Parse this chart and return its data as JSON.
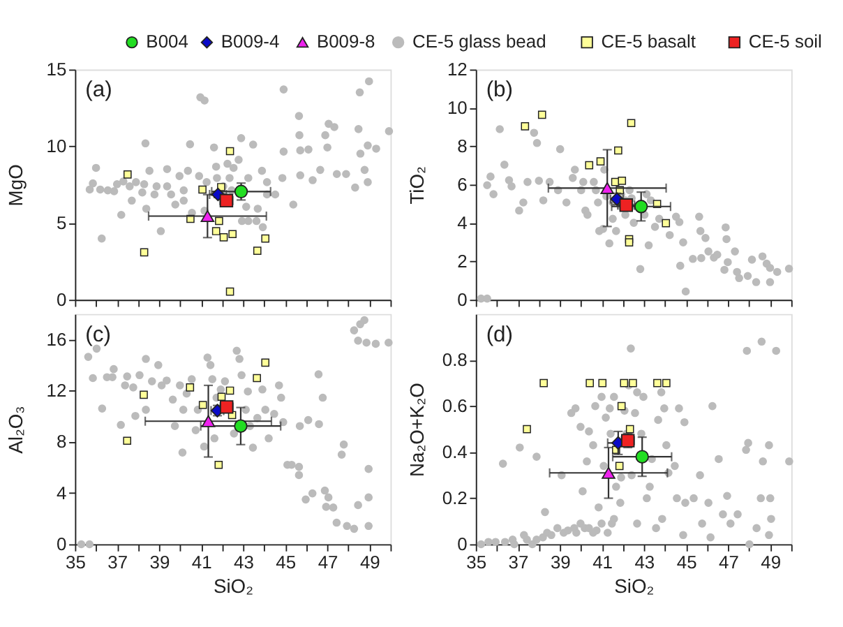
{
  "chart_data": [
    {
      "type": "scatter",
      "ylabel": "MgO",
      "xlim": [
        35,
        50
      ],
      "ylim": [
        0,
        15
      ],
      "xticks": [
        35,
        {
          "value": 36,
          "label": null
        },
        37,
        {
          "value": 38,
          "label": null
        },
        39,
        {
          "value": 40,
          "label": null
        },
        41,
        {
          "value": 42,
          "label": null
        },
        43,
        {
          "value": 44,
          "label": null
        },
        45,
        {
          "value": 46,
          "label": null
        },
        47,
        {
          "value": 48,
          "label": null
        },
        49,
        {
          "value": 50,
          "label": null
        }
      ],
      "yticks": [
        0,
        5,
        10,
        15
      ],
      "tick_labels": "y",
      "grid": false,
      "legend": "top",
      "annotations": [
        "(a)"
      ],
      "series": [
        {
          "name": "B004",
          "color": "#22dd22",
          "marker": "circle",
          "x": [
            42.9
          ],
          "values": [
            7.05
          ],
          "errors": [
            0.55
          ],
          "xerrors": [
            1.4
          ]
        },
        {
          "name": "B009-4",
          "color": "#0a0ac8",
          "marker": "diamond",
          "x": [
            41.8
          ],
          "values": [
            6.86
          ],
          "errors": [
            0.2
          ],
          "xerrors": [
            0.4
          ]
        },
        {
          "name": "B009-8",
          "color": "#ee22ee",
          "marker": "triangle",
          "x": [
            41.3
          ],
          "values": [
            5.45
          ],
          "errors": [
            1.4
          ],
          "xerrors": [
            2.8
          ]
        },
        {
          "name": "CE-5 glass bead",
          "color": "#bbbbbb",
          "marker": "circle",
          "x": [
            35.7,
            35.85,
            36.0,
            36.27,
            36.2,
            36.56,
            36.86,
            37.2,
            37.3,
            37.9,
            37.7,
            38.35,
            38.54,
            38.2,
            38.39,
            38.88,
            39.08,
            39.38,
            39.57,
            39.97,
            40.17,
            40.37,
            40.47,
            40.56,
            40.9,
            40.96,
            41.16,
            41.26,
            41.61,
            41.71,
            42.05,
            42.25,
            42.54,
            42.78,
            42.9,
            43.14,
            43.24,
            43.47,
            43.63,
            43.89,
            43.93,
            44.13,
            44.52,
            44.86,
            44.92,
            44.92,
            45.38,
            45.65,
            45.67,
            45.71,
            45.71,
            46.1,
            46.3,
            46.66,
            46.9,
            47.06,
            47.0,
            47.33,
            47.45,
            47.89,
            48.32,
            48.48,
            48.54,
            48.57,
            48.77,
            48.92,
            48.98,
            48.92,
            49.32,
            49.93,
            41.75,
            42.05,
            42.45,
            40.17,
            39.38,
            38.78,
            39.77,
            41.16,
            42.94,
            43.24,
            43.69,
            44.13,
            38.29,
            37.6,
            37.0,
            42.35
          ],
          "values": [
            7.18,
            7.58,
            8.59,
            3.99,
            7.18,
            7.13,
            7.07,
            5.53,
            7.71,
            7.66,
            6.46,
            10.19,
            8.4,
            6.99,
            5.93,
            7.39,
            4.47,
            8.51,
            6.86,
            8.06,
            6.46,
            8.4,
            10.13,
            5.66,
            8.06,
            13.19,
            12.98,
            7.66,
            9.92,
            8.67,
            6.73,
            8.86,
            8.59,
            9.12,
            10.53,
            6.06,
            7.93,
            10.11,
            5.13,
            8.4,
            4.73,
            7.66,
            6.86,
            7.93,
            9.65,
            13.7,
            6.2,
            11.97,
            10.72,
            9.73,
            8.11,
            9.79,
            7.79,
            8.46,
            10.72,
            11.46,
            9.92,
            11.25,
            8.19,
            8.19,
            7.31,
            11.12,
            13.51,
            9.52,
            8.46,
            7.66,
            14.23,
            10.05,
            9.84,
            10.98,
            7.93,
            7.39,
            7.13,
            7.13,
            7.39,
            6.86,
            6.2,
            5.8,
            5.13,
            5.13,
            5.93,
            6.86,
            7.53,
            7.39,
            7.53,
            7.93
          ]
        },
        {
          "name": "CE-5 basalt",
          "color": "#ffff99",
          "marker": "square",
          "x": [
            37.5,
            41.06,
            41.95,
            42.37,
            40.49,
            41.85,
            41.71,
            42.07,
            42.49,
            44.05,
            43.67,
            38.29,
            42.37
          ],
          "values": [
            8.16,
            7.18,
            7.34,
            9.68,
            5.27,
            5.13,
            4.47,
            4.07,
            4.28,
            3.99,
            3.19,
            3.09,
            0.53
          ]
        },
        {
          "name": "CE-5 soil",
          "color": "#ee2222",
          "marker": "square",
          "x": [
            42.2
          ],
          "values": [
            6.46
          ],
          "errors": [
            0.3
          ],
          "xerrors": [
            0.3
          ]
        }
      ]
    },
    {
      "type": "scatter",
      "ylabel": "TiO₂",
      "xlim": [
        35,
        50
      ],
      "ylim": [
        0,
        12
      ],
      "xticks": [
        35,
        {
          "value": 36,
          "label": null
        },
        37,
        {
          "value": 38,
          "label": null
        },
        39,
        {
          "value": 40,
          "label": null
        },
        41,
        {
          "value": 42,
          "label": null
        },
        43,
        {
          "value": 44,
          "label": null
        },
        45,
        {
          "value": 46,
          "label": null
        },
        47,
        {
          "value": 48,
          "label": null
        },
        49,
        {
          "value": 50,
          "label": null
        }
      ],
      "yticks": [
        0,
        2,
        4,
        6,
        8,
        10,
        12
      ],
      "tick_labels": "y",
      "grid": false,
      "annotations": [
        "(b)"
      ],
      "series": [
        {
          "color": "#22dd22",
          "marker": "circle",
          "x": [
            42.86
          ],
          "values": [
            4.86
          ],
          "errors": [
            0.75
          ],
          "xerrors": [
            1.4
          ]
        },
        {
          "color": "#0a0ac8",
          "marker": "diamond",
          "x": [
            41.71
          ],
          "values": [
            5.25
          ],
          "errors": [
            0.3
          ],
          "xerrors": [
            0.3
          ]
        },
        {
          "color": "#ee22ee",
          "marker": "triangle",
          "x": [
            41.25
          ],
          "values": [
            5.82
          ],
          "errors": [
            2.0
          ],
          "xerrors": [
            2.8
          ]
        },
        {
          "color": "#bbbbbb",
          "marker": "circle",
          "x": [
            35.25,
            35.54,
            35.7,
            35.54,
            35.84,
            36.14,
            36.36,
            36.58,
            36.7,
            37.06,
            37.26,
            37.46,
            37.77,
            37.91,
            38.0,
            38.21,
            38.51,
            39.01,
            38.91,
            39.31,
            39.61,
            39.71,
            40.01,
            40.21,
            40.31,
            40.61,
            40.81,
            40.87,
            41.05,
            41.11,
            41.35,
            41.51,
            41.67,
            41.91,
            42.11,
            42.31,
            42.41,
            42.51,
            42.82,
            43.02,
            43.22,
            43.32,
            43.52,
            43.72,
            44.22,
            44.52,
            44.68,
            44.72,
            44.86,
            44.98,
            45.32,
            45.62,
            45.68,
            45.72,
            45.92,
            46.06,
            46.32,
            46.48,
            46.82,
            46.88,
            46.92,
            46.98,
            47.32,
            47.42,
            47.52,
            47.93,
            48.13,
            48.33,
            48.63,
            48.83,
            48.99,
            48.99,
            49.33,
            49.89,
            41.51,
            41.21,
            40.71,
            40.11,
            41.91,
            42.61,
            43.12,
            42.11
          ],
          "values": [
            0.06,
            0.06,
            6.42,
            5.97,
            5.5,
            8.89,
            7.04,
            6.23,
            5.91,
            4.65,
            5.07,
            6.14,
            8.7,
            8.17,
            6.2,
            5.18,
            6.14,
            7.85,
            5.71,
            5.07,
            6.35,
            6.78,
            5.71,
            4.65,
            4.43,
            6.14,
            5.07,
            3.58,
            3.69,
            6.78,
            2.94,
            4.22,
            3.58,
            5.5,
            4.43,
            5.71,
            5.29,
            4.01,
            1.6,
            4.43,
            2.84,
            5.18,
            3.8,
            4.22,
            3.37,
            4.33,
            4.05,
            1.77,
            2.99,
            0.43,
            2.13,
            4.33,
            3.58,
            2.17,
            3.22,
            2.52,
            2.2,
            2.35,
            1.56,
            3.77,
            3.16,
            1.96,
            2.52,
            1.45,
            1.13,
            1.24,
            2.09,
            0.92,
            2.26,
            1.88,
            1.66,
            0.92,
            1.45,
            1.62,
            5.07,
            5.39,
            5.71,
            6.14,
            4.86,
            4.86,
            5.5,
            5.18
          ]
        },
        {
          "color": "#ffff99",
          "marker": "square",
          "x": [
            37.34,
            38.15,
            40.39,
            40.93,
            41.77,
            42.39,
            41.63,
            41.95,
            41.85,
            43.62,
            44.04,
            42.29,
            42.29
          ],
          "values": [
            9.04,
            9.64,
            7.01,
            7.21,
            7.78,
            9.21,
            6.14,
            6.2,
            5.71,
            4.99,
            3.99,
            3.16,
            2.99
          ]
        },
        {
          "color": "#ee2222",
          "marker": "square",
          "x": [
            42.15
          ],
          "values": [
            4.93
          ],
          "errors": [
            0.2
          ],
          "xerrors": [
            0.4
          ]
        }
      ]
    },
    {
      "type": "scatter",
      "xlabel": "SiO₂",
      "ylabel": "Al₂O₃",
      "xlim": [
        35,
        50
      ],
      "ylim": [
        0,
        18
      ],
      "xticks": [
        35,
        {
          "value": 36,
          "label": null
        },
        37,
        {
          "value": 38,
          "label": null
        },
        39,
        {
          "value": 40,
          "label": null
        },
        41,
        {
          "value": 42,
          "label": null
        },
        43,
        {
          "value": 44,
          "label": null
        },
        45,
        {
          "value": 46,
          "label": null
        },
        47,
        {
          "value": 48,
          "label": null
        },
        49,
        {
          "value": 50,
          "label": null
        }
      ],
      "yticks": [
        0,
        4,
        8,
        12,
        16
      ],
      "grid": false,
      "annotations": [
        "(c)"
      ],
      "series": [
        {
          "color": "#22dd22",
          "marker": "circle",
          "x": [
            42.88
          ],
          "values": [
            9.24
          ],
          "errors": [
            1.45
          ],
          "xerrors": [
            1.9
          ]
        },
        {
          "color": "#0a0ac8",
          "marker": "diamond",
          "x": [
            41.77
          ],
          "values": [
            10.45
          ],
          "errors": [
            0.4
          ],
          "xerrors": [
            0.3
          ]
        },
        {
          "color": "#ee22ee",
          "marker": "triangle",
          "x": [
            41.34
          ],
          "values": [
            9.62
          ],
          "errors": [
            2.8
          ],
          "xerrors": [
            3.0
          ]
        },
        {
          "color": "#bbbbbb",
          "marker": "circle",
          "x": [
            35.3,
            35.69,
            35.63,
            36.03,
            35.85,
            36.29,
            36.52,
            36.78,
            36.84,
            37.18,
            37.38,
            37.48,
            37.77,
            37.87,
            38.07,
            38.37,
            38.37,
            38.66,
            38.96,
            39.12,
            39.36,
            39.65,
            39.75,
            39.99,
            40.11,
            40.15,
            40.31,
            40.55,
            40.74,
            40.84,
            41.14,
            41.3,
            41.44,
            41.53,
            41.63,
            41.73,
            41.93,
            42.13,
            42.33,
            42.56,
            42.69,
            42.82,
            42.92,
            43.12,
            43.22,
            43.32,
            43.46,
            43.67,
            43.91,
            44.05,
            44.21,
            44.47,
            44.7,
            44.8,
            44.9,
            45.1,
            45.3,
            45.65,
            45.65,
            45.69,
            45.97,
            46.09,
            46.29,
            46.6,
            46.58,
            46.78,
            46.88,
            46.94,
            47.05,
            47.28,
            47.44,
            47.68,
            47.78,
            47.93,
            48.27,
            48.46,
            48.27,
            48.56,
            48.76,
            48.46,
            48.86,
            49.3,
            48.96,
            48.96,
            48.96,
            49.91
          ],
          "values": [
            0,
            0,
            14.65,
            15.29,
            12.99,
            10.61,
            13.06,
            13.06,
            13.69,
            9.33,
            12.42,
            13.12,
            12.26,
            10.03,
            13.22,
            14.49,
            10.51,
            12.74,
            14.01,
            12.42,
            12.8,
            11.31,
            9.24,
            12.42,
            7.17,
            10.51,
            11.78,
            12.9,
            8.92,
            10.51,
            7.64,
            14.59,
            14.01,
            12.9,
            8.28,
            11.46,
            12.1,
            12.74,
            null,
            8.66,
            15.13,
            14.49,
            13.22,
            10.51,
            11.94,
            9.24,
            7.55,
            9.87,
            12.1,
            10.51,
            8.28,
            10.19,
            12.42,
            11.46,
            9.55,
            6.21,
            6.21,
            6.05,
            5.41,
            9.24,
            3.5,
            9.71,
            3.98,
            9.39,
            13.28,
            11.46,
            4.2,
            2.93,
            3.66,
            2.87,
            1.69,
            7.01,
            7.8,
            1.43,
            1.21,
            3.06,
            16.72,
            17.2,
            17.52,
            15.92,
            15.76,
            15.67,
            3.66,
            1.43,
            5.89,
            15.76
          ]
        },
        {
          "color": "#ffff99",
          "marker": "square",
          "x": [
            38.27,
            40.47,
            41.08,
            41.97,
            42.37,
            44.05,
            43.65,
            42.47,
            37.48,
            41.83
          ],
          "values": [
            11.69,
            12.26,
            10.89,
            11.53,
            12.01,
            14.2,
            12.99,
            10.1,
            8.09,
            6.21
          ]
        },
        {
          "color": "#ee2222",
          "marker": "square",
          "x": [
            42.21
          ],
          "values": [
            10.73
          ],
          "errors": [
            0.4
          ],
          "xerrors": [
            0.3
          ]
        }
      ]
    },
    {
      "type": "scatter",
      "xlabel": "SiO₂",
      "ylabel": "Na₂O+K₂O",
      "xlim": [
        35,
        50
      ],
      "ylim": [
        0,
        1
      ],
      "xticks": [
        35,
        {
          "value": 36,
          "label": null
        },
        37,
        {
          "value": 38,
          "label": null
        },
        39,
        {
          "value": 40,
          "label": null
        },
        41,
        {
          "value": 42,
          "label": null
        },
        43,
        {
          "value": 44,
          "label": null
        },
        45,
        {
          "value": 46,
          "label": null
        },
        47,
        {
          "value": 48,
          "label": null
        },
        49,
        {
          "value": 50,
          "label": null
        }
      ],
      "yticks": [
        0,
        0.2,
        0.4,
        0.6,
        0.8
      ],
      "grid": false,
      "annotations": [
        "(d)"
      ],
      "series": [
        {
          "color": "#22dd22",
          "marker": "circle",
          "x": [
            42.91
          ],
          "values": [
            0.38
          ],
          "errors": [
            0.085
          ],
          "xerrors": [
            1.4
          ]
        },
        {
          "color": "#0a0ac8",
          "marker": "diamond",
          "x": [
            41.77
          ],
          "values": [
            0.44
          ],
          "errors": [
            0.05
          ],
          "xerrors": [
            0.5
          ]
        },
        {
          "color": "#ee22ee",
          "marker": "triangle",
          "x": [
            41.31
          ],
          "values": [
            0.31
          ],
          "errors": [
            0.11
          ],
          "xerrors": [
            2.8
          ]
        },
        {
          "color": "#bbbbbb",
          "marker": "circle",
          "x": [
            35.25,
            35.6,
            35.94,
            36.39,
            36.75,
            36.83,
            37.29,
            37.43,
            37.69,
            37.89,
            38.19,
            38.39,
            38.59,
            38.88,
            39.18,
            39.38,
            39.68,
            39.78,
            39.98,
            40.18,
            40.38,
            40.58,
            40.98,
            41.27,
            41.47,
            40.74,
            37.09,
            37.89,
            36.29,
            38.29,
            39.08,
            39.54,
            39.74,
            39.98,
            40.08,
            40.28,
            40.38,
            40.58,
            40.68,
            40.84,
            40.98,
            41.08,
            41.18,
            41.37,
            41.41,
            41.57,
            41.57,
            41.67,
            41.87,
            41.91,
            42.07,
            42.17,
            42.27,
            42.37,
            42.41,
            42.57,
            42.67,
            42.67,
            42.87,
            42.97,
            43.13,
            43.27,
            43.37,
            43.57,
            43.67,
            43.82,
            43.96,
            44.06,
            44.16,
            44.46,
            44.66,
            44.86,
            44.92,
            44.96,
            45.36,
            45.66,
            45.76,
            46.06,
            46.25,
            46.55,
            46.75,
            46.95,
            47.11,
            47.45,
            47.85,
            47.95,
            47.89,
            48.01,
            48.35,
            48.55,
            48.59,
            48.65,
            48.94,
            48.94,
            49.0,
            49.04,
            49.28,
            49.9,
            46.16,
            43.86,
            44.56
          ],
          "values": [
            0,
            0.01,
            0.01,
            0.01,
            0.02,
            0,
            0.04,
            0.02,
            0,
            0.02,
            0.03,
            0.05,
            0.04,
            0.07,
            0.05,
            0.06,
            0.07,
            0.05,
            0.09,
            0.07,
            0.07,
            0.05,
            0.09,
            0.05,
            0.09,
            0.06,
            0.42,
            0.38,
            0.35,
            0.14,
            0.3,
            0.57,
            0.59,
            0.51,
            0.23,
            0.36,
            0.49,
            0.43,
            0.6,
            0.16,
            0.64,
            0.34,
            0.55,
            0.59,
            0.48,
            0.64,
            0.11,
            0.25,
            0.18,
            0.29,
            0.58,
            0.48,
            0.69,
            0.85,
            0.3,
            0.57,
            0.66,
            0.09,
            0.48,
            0.64,
            0.2,
            0.25,
            0.37,
            0.07,
            0.54,
            0.66,
            0.59,
            0.43,
            0.31,
            0.34,
            0.59,
            0.04,
            0.53,
            0.18,
            0.2,
            0.3,
            0.09,
            0.18,
            0.6,
            0.37,
            0.13,
            0.21,
            0.09,
            0.13,
            0.41,
            0.44,
            0.84,
            0,
            0.07,
            0.2,
            0.88,
            0.36,
            0.04,
            0.43,
            0.2,
            0.11,
            0.84,
            0.36,
            0.03,
            0.11,
            0.2
          ]
        },
        {
          "color": "#ffff99",
          "marker": "square",
          "x": [
            38.23,
            40.42,
            41.02,
            42.05,
            42.47,
            43.63,
            44.06,
            37.43,
            41.93,
            42.33,
            41.67,
            41.83
          ],
          "values": [
            0.7,
            0.7,
            0.7,
            0.7,
            0.7,
            0.7,
            0.7,
            0.5,
            0.6,
            0.5,
            0.41,
            0.34
          ]
        },
        {
          "color": "#ee2222",
          "marker": "square",
          "x": [
            42.23
          ],
          "values": [
            0.45
          ],
          "errors": [
            0.03
          ],
          "xerrors": [
            0.3
          ]
        }
      ]
    }
  ]
}
